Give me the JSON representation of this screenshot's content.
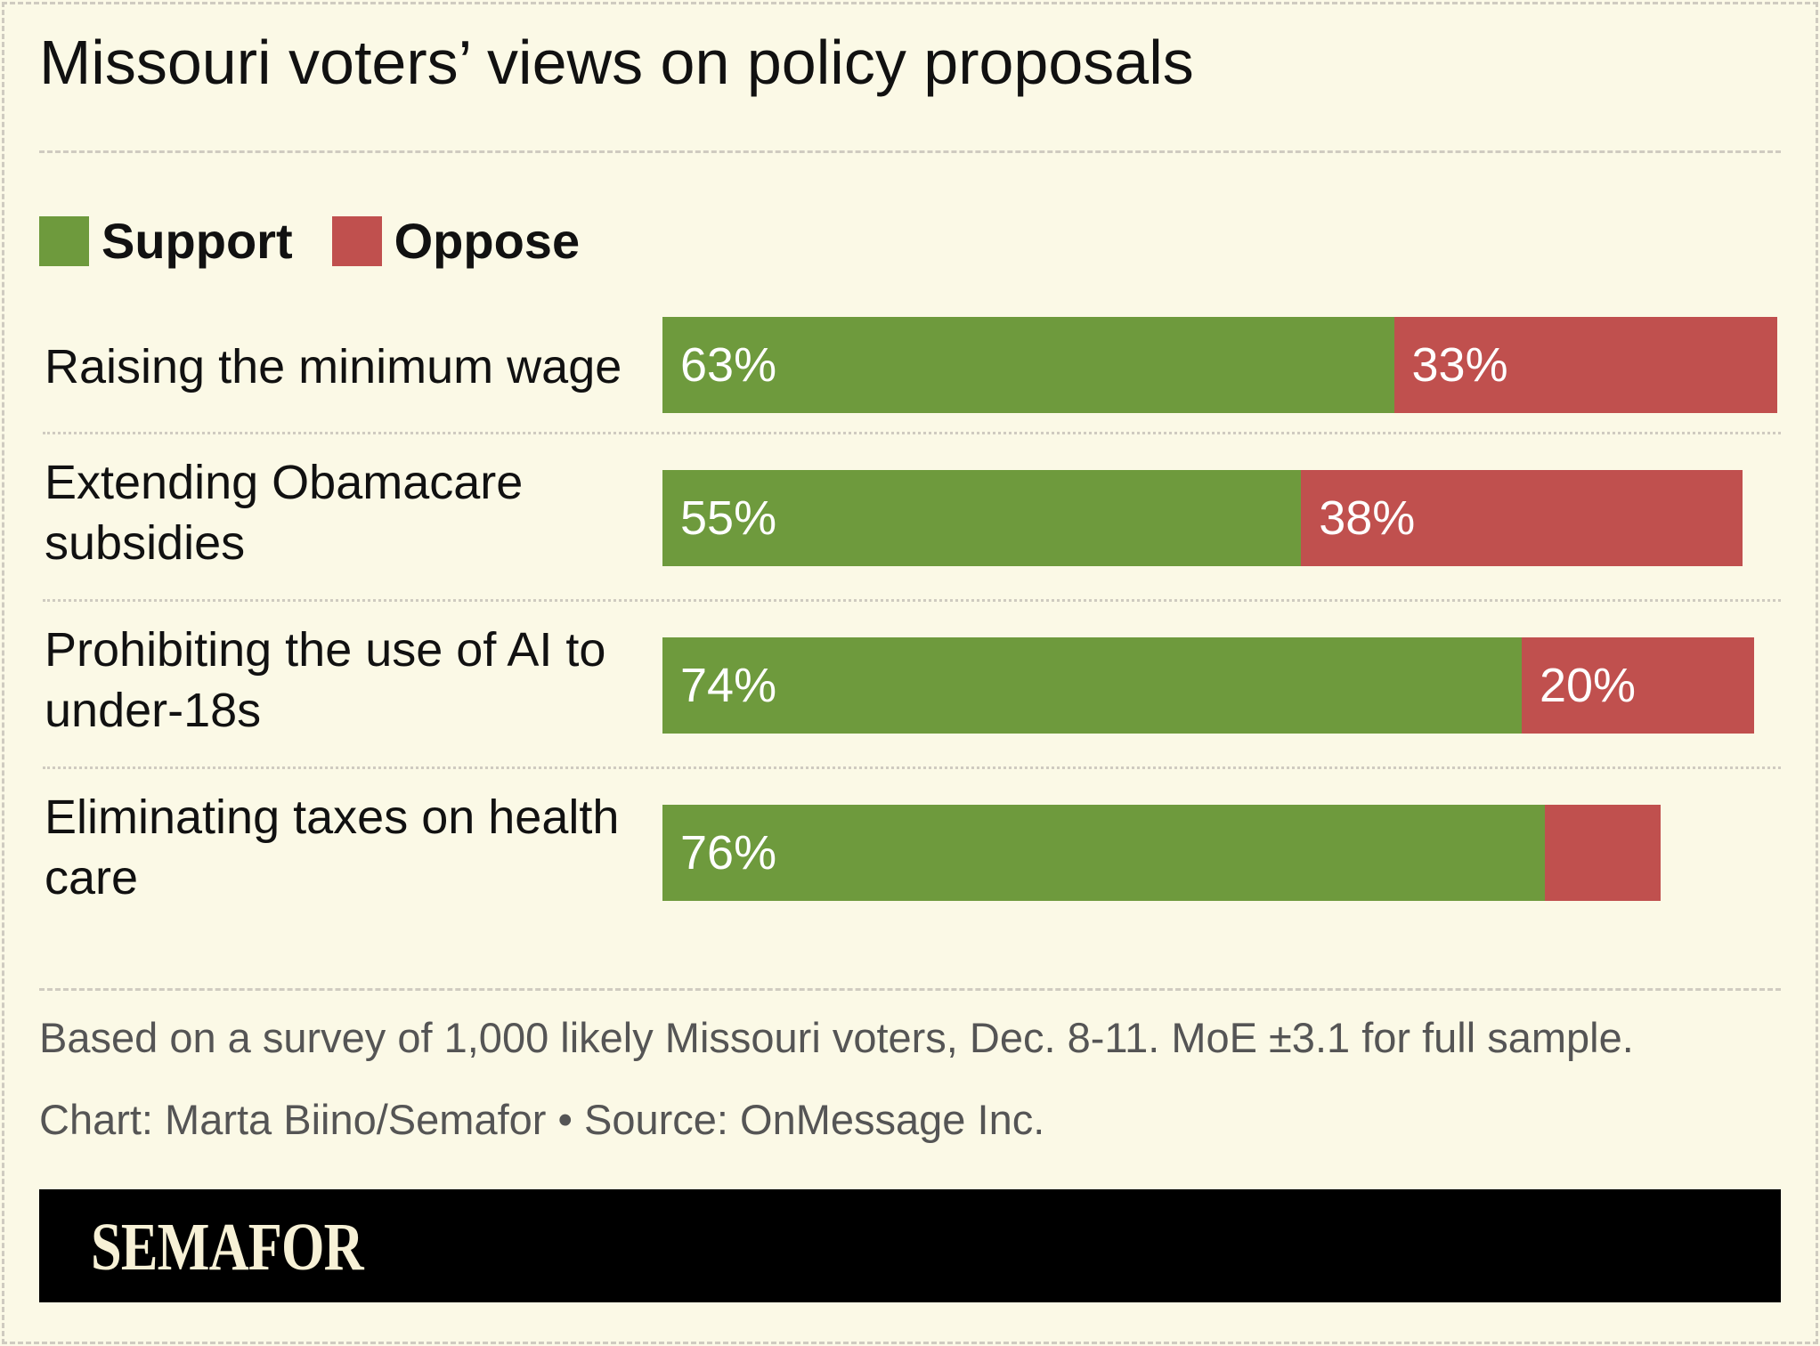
{
  "chart_data": {
    "type": "bar",
    "orientation": "horizontal",
    "stacked": true,
    "title": "Missouri voters’ views on policy proposals",
    "categories": [
      "Raising the minimum wage",
      "Extending Obamacare subsidies",
      "Prohibiting the use of AI to under-18s",
      "Eliminating taxes on health care"
    ],
    "series": [
      {
        "name": "Support",
        "color": "#6e9a3d",
        "values": [
          63,
          55,
          74,
          76
        ],
        "labels": [
          "63%",
          "55%",
          "74%",
          "76%"
        ]
      },
      {
        "name": "Oppose",
        "color": "#c0504e",
        "values": [
          33,
          38,
          20,
          10
        ],
        "labels": [
          "33%",
          "38%",
          "20%",
          ""
        ]
      }
    ],
    "xlim": [
      0,
      100
    ],
    "grid": false,
    "legend": "top-left"
  },
  "footer": {
    "note": "Based on a survey of 1,000 likely Missouri voters, Dec. 8-11. MoE ±3.1 for full sample.",
    "credit": "Chart: Marta Biino/Semafor • Source: OnMessage Inc.",
    "brand": "SEMAFOR"
  }
}
